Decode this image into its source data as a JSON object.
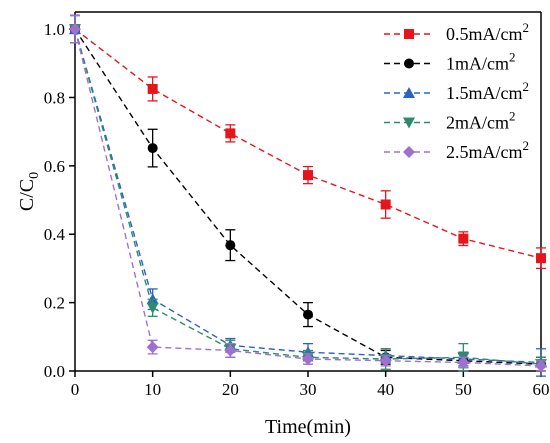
{
  "chart_data": {
    "type": "line",
    "title": "",
    "xlabel": "Time(min)",
    "ylabel": "C/C",
    "ylabel_subscript": "0",
    "xlim": [
      0,
      60
    ],
    "ylim": [
      0.0,
      1.05
    ],
    "xticks": [
      0,
      10,
      20,
      30,
      40,
      50,
      60
    ],
    "yticks": [
      "0.0",
      "0.2",
      "0.4",
      "0.6",
      "0.8",
      "1.0"
    ],
    "ytick_values": [
      0.0,
      0.2,
      0.4,
      0.6,
      0.8,
      1.0
    ],
    "legend_position": "top-right",
    "grid": false,
    "x": [
      0,
      10,
      20,
      30,
      40,
      50,
      60
    ],
    "series": [
      {
        "name": "0.5mA/cm",
        "superscript": "2",
        "color": "#e8141b",
        "marker": "square",
        "values": [
          1.0,
          0.825,
          0.695,
          0.573,
          0.487,
          0.387,
          0.33
        ],
        "errors": [
          0.04,
          0.035,
          0.025,
          0.025,
          0.04,
          0.02,
          0.03
        ]
      },
      {
        "name": "1mA/cm",
        "superscript": "2",
        "color": "#000000",
        "marker": "circle",
        "values": [
          1.0,
          0.652,
          0.368,
          0.165,
          0.04,
          0.03,
          0.02
        ],
        "errors": [
          0.04,
          0.055,
          0.045,
          0.035,
          0.02,
          0.02,
          0.02
        ]
      },
      {
        "name": "1.5mA/cm",
        "superscript": "2",
        "color": "#2b62c4",
        "marker": "triangle-up",
        "values": [
          1.0,
          0.21,
          0.075,
          0.055,
          0.045,
          0.035,
          0.025
        ],
        "errors": [
          0.04,
          0.03,
          0.02,
          0.025,
          0.02,
          0.02,
          0.04
        ]
      },
      {
        "name": "2mA/cm",
        "superscript": "2",
        "color": "#2e8b6e",
        "marker": "triangle-down",
        "values": [
          1.0,
          0.185,
          0.065,
          0.04,
          0.035,
          0.04,
          0.02
        ],
        "errors": [
          0.04,
          0.025,
          0.025,
          0.02,
          0.03,
          0.04,
          0.02
        ]
      },
      {
        "name": "2.5mA/cm",
        "superscript": "2",
        "color": "#a070d0",
        "marker": "diamond",
        "values": [
          1.0,
          0.07,
          0.06,
          0.035,
          0.03,
          0.025,
          0.015
        ],
        "errors": [
          0.04,
          0.02,
          0.02,
          0.015,
          0.015,
          0.015,
          0.015
        ]
      }
    ]
  }
}
